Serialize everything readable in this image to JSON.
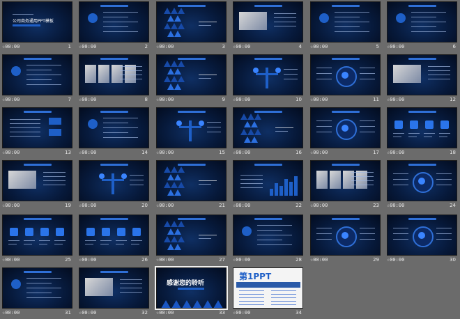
{
  "slides": [
    {
      "n": "1",
      "time": "00:00",
      "kind": "title",
      "title": "公司商务通用PPT模板"
    },
    {
      "n": "2",
      "time": "00:00",
      "kind": "agenda"
    },
    {
      "n": "3",
      "time": "00:00",
      "kind": "section"
    },
    {
      "n": "4",
      "time": "00:00",
      "kind": "photo"
    },
    {
      "n": "5",
      "time": "00:00",
      "kind": "diagram"
    },
    {
      "n": "6",
      "time": "00:00",
      "kind": "text"
    },
    {
      "n": "7",
      "time": "00:00",
      "kind": "text"
    },
    {
      "n": "8",
      "time": "00:00",
      "kind": "photos"
    },
    {
      "n": "9",
      "time": "00:00",
      "kind": "section"
    },
    {
      "n": "10",
      "time": "00:00",
      "kind": "tree"
    },
    {
      "n": "11",
      "time": "00:00",
      "kind": "circle"
    },
    {
      "n": "12",
      "time": "00:00",
      "kind": "photo"
    },
    {
      "n": "13",
      "time": "00:00",
      "kind": "stats"
    },
    {
      "n": "14",
      "time": "00:00",
      "kind": "list"
    },
    {
      "n": "15",
      "time": "00:00",
      "kind": "triangles"
    },
    {
      "n": "16",
      "time": "00:00",
      "kind": "section"
    },
    {
      "n": "17",
      "time": "00:00",
      "kind": "circles"
    },
    {
      "n": "18",
      "time": "00:00",
      "kind": "icons"
    },
    {
      "n": "19",
      "time": "00:00",
      "kind": "photo"
    },
    {
      "n": "20",
      "time": "00:00",
      "kind": "arcs"
    },
    {
      "n": "21",
      "time": "00:00",
      "kind": "section"
    },
    {
      "n": "22",
      "time": "00:00",
      "kind": "bars"
    },
    {
      "n": "23",
      "time": "00:00",
      "kind": "photos"
    },
    {
      "n": "24",
      "time": "00:00",
      "kind": "bulb"
    },
    {
      "n": "25",
      "time": "00:00",
      "kind": "icons"
    },
    {
      "n": "26",
      "time": "00:00",
      "kind": "icons"
    },
    {
      "n": "27",
      "time": "00:00",
      "kind": "section"
    },
    {
      "n": "28",
      "time": "00:00",
      "kind": "list"
    },
    {
      "n": "29",
      "time": "00:00",
      "kind": "circle"
    },
    {
      "n": "30",
      "time": "00:00",
      "kind": "handshake"
    },
    {
      "n": "31",
      "time": "00:00",
      "kind": "diagram"
    },
    {
      "n": "32",
      "time": "00:00",
      "kind": "photo"
    },
    {
      "n": "33",
      "time": "00:00",
      "kind": "thanks",
      "title": "感谢您的聆听"
    },
    {
      "n": "34",
      "time": "00:00",
      "kind": "ad",
      "title": "第1PPT"
    }
  ],
  "selected": "33",
  "colors": {
    "accent": "#1e5fc7",
    "bg": "#6b6b6b"
  }
}
